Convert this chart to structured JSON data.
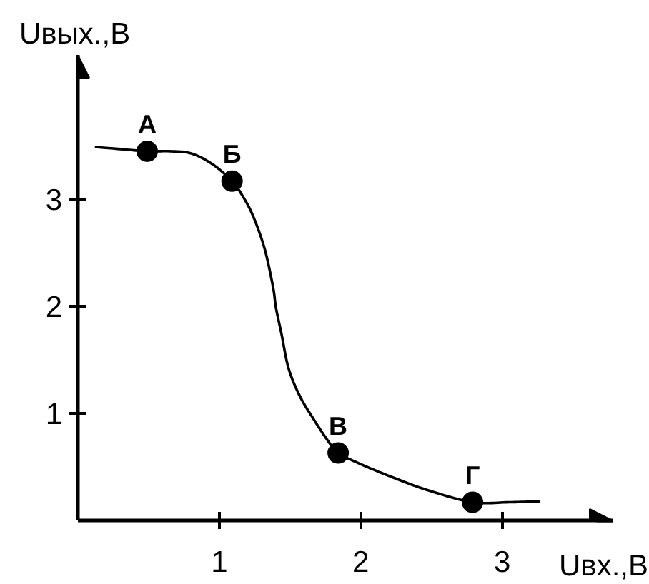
{
  "chart_data": {
    "type": "line",
    "xlabel": "Uвх.,В",
    "ylabel": "Uвых.,В",
    "xlim": [
      0,
      3.78
    ],
    "ylim": [
      0,
      4.35
    ],
    "xticks": [
      1,
      2,
      3
    ],
    "yticks": [
      1,
      2,
      3
    ],
    "grid": false,
    "series": [
      {
        "color": "#000000",
        "marker": "none",
        "x": [
          0.12,
          0.3,
          0.49,
          0.65,
          0.8,
          0.95,
          1.09,
          1.17,
          1.24,
          1.32,
          1.38,
          1.4,
          1.44,
          1.49,
          1.57,
          1.67,
          1.77,
          1.84,
          2.01,
          2.25,
          2.48,
          2.79,
          3.05,
          3.27
        ],
        "values": [
          3.49,
          3.47,
          3.45,
          3.45,
          3.43,
          3.33,
          3.17,
          3.02,
          2.84,
          2.54,
          2.18,
          1.99,
          1.74,
          1.42,
          1.16,
          0.94,
          0.74,
          0.63,
          0.52,
          0.39,
          0.28,
          0.17,
          0.17,
          0.18
        ]
      },
      {
        "type": "scatter",
        "color": "#000000",
        "marker": "circle",
        "x": [
          0.49,
          1.09,
          1.84,
          2.79
        ],
        "values": [
          3.45,
          3.17,
          0.63,
          0.17
        ]
      }
    ],
    "annotations": [
      {
        "text": "А",
        "x": 0.49,
        "y": 3.45
      },
      {
        "text": "Б",
        "x": 1.09,
        "y": 3.17
      },
      {
        "text": "В",
        "x": 1.84,
        "y": 0.63
      },
      {
        "text": "Г",
        "x": 2.79,
        "y": 0.17
      }
    ]
  }
}
